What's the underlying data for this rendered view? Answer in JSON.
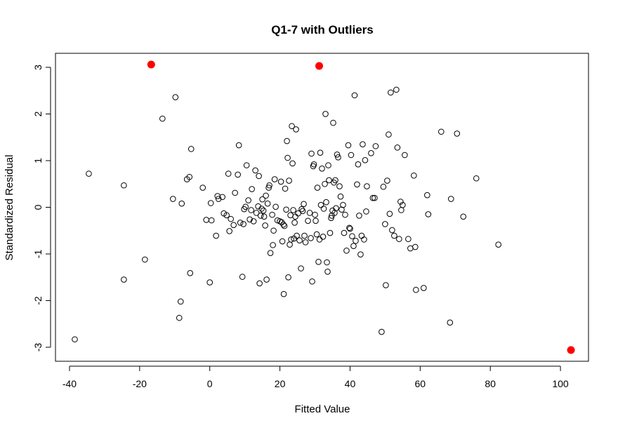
{
  "chart_data": {
    "type": "scatter",
    "title": "Q1-7 with Outliers",
    "xlabel": "Fitted Value",
    "ylabel": "Standardized Residual",
    "xlim": [
      -44,
      108
    ],
    "ylim": [
      -3.3,
      3.3
    ],
    "xticks": [
      -40,
      -20,
      0,
      20,
      40,
      60,
      80,
      100
    ],
    "yticks": [
      -3,
      -2,
      -1,
      0,
      1,
      2,
      3
    ],
    "grid": false,
    "colors": {
      "points": "#000000",
      "outliers": "#ff0000"
    },
    "points": [
      [
        -38.5,
        -2.83
      ],
      [
        -34.5,
        0.72
      ],
      [
        -24.5,
        0.47
      ],
      [
        -24.5,
        -1.55
      ],
      [
        -18.5,
        -1.12
      ],
      [
        -13.5,
        1.9
      ],
      [
        -10.5,
        0.18
      ],
      [
        -9.8,
        2.36
      ],
      [
        -8.7,
        -2.37
      ],
      [
        -8.3,
        -2.02
      ],
      [
        -8,
        0.08
      ],
      [
        -6.5,
        0.6
      ],
      [
        -5.8,
        0.65
      ],
      [
        -5.6,
        -1.41
      ],
      [
        -5.3,
        1.25
      ],
      [
        -2,
        0.42
      ],
      [
        -1,
        -0.27
      ],
      [
        0,
        -1.61
      ],
      [
        0.3,
        0.09
      ],
      [
        0.5,
        -0.28
      ],
      [
        1.8,
        -0.61
      ],
      [
        2.2,
        0.24
      ],
      [
        2.5,
        0.18
      ],
      [
        3.6,
        0.22
      ],
      [
        4,
        -0.13
      ],
      [
        4.8,
        -0.17
      ],
      [
        5.3,
        0.72
      ],
      [
        5.6,
        -0.51
      ],
      [
        6,
        -0.25
      ],
      [
        6.8,
        -0.38
      ],
      [
        7.2,
        0.31
      ],
      [
        8,
        0.7
      ],
      [
        8.3,
        1.33
      ],
      [
        8.7,
        -0.33
      ],
      [
        9.3,
        -1.49
      ],
      [
        9.6,
        -0.36
      ],
      [
        9.8,
        -0.04
      ],
      [
        10.2,
        0.01
      ],
      [
        10.5,
        0.9
      ],
      [
        11,
        0.15
      ],
      [
        11.4,
        -0.26
      ],
      [
        11.8,
        -0.06
      ],
      [
        12,
        0.39
      ],
      [
        12.5,
        -0.3
      ],
      [
        13,
        0.79
      ],
      [
        13.3,
        -0.12
      ],
      [
        13.8,
        0.02
      ],
      [
        14,
        0.67
      ],
      [
        14.2,
        -1.63
      ],
      [
        14.5,
        -0.18
      ],
      [
        14.8,
        -0.03
      ],
      [
        15,
        0.17
      ],
      [
        15.3,
        -0.07
      ],
      [
        15.5,
        -0.2
      ],
      [
        15.8,
        -0.39
      ],
      [
        16,
        0.25
      ],
      [
        16.2,
        -1.55
      ],
      [
        16.5,
        0.08
      ],
      [
        16.8,
        0.42
      ],
      [
        17,
        0.47
      ],
      [
        17.3,
        -0.98
      ],
      [
        17.8,
        -0.16
      ],
      [
        18,
        -0.81
      ],
      [
        18.2,
        -0.5
      ],
      [
        18.5,
        0.6
      ],
      [
        18.8,
        0.01
      ],
      [
        19.3,
        -0.28
      ],
      [
        20,
        -0.3
      ],
      [
        20.3,
        0.55
      ],
      [
        20.5,
        -0.32
      ],
      [
        20.7,
        -0.73
      ],
      [
        21,
        -0.37
      ],
      [
        21.1,
        -1.86
      ],
      [
        21.3,
        -0.4
      ],
      [
        21.5,
        0.4
      ],
      [
        21.8,
        -0.05
      ],
      [
        22,
        1.42
      ],
      [
        22.2,
        1.06
      ],
      [
        22.4,
        -1.5
      ],
      [
        22.6,
        0.57
      ],
      [
        22.8,
        -0.8
      ],
      [
        23,
        -0.17
      ],
      [
        23.2,
        -0.69
      ],
      [
        23.4,
        1.74
      ],
      [
        23.6,
        0.94
      ],
      [
        23.8,
        -0.06
      ],
      [
        24,
        -0.67
      ],
      [
        24.2,
        -0.33
      ],
      [
        24.4,
        -0.2
      ],
      [
        24.6,
        1.67
      ],
      [
        24.8,
        -0.61
      ],
      [
        25.2,
        -0.13
      ],
      [
        25.6,
        -0.71
      ],
      [
        26,
        -1.31
      ],
      [
        26.2,
        -0.04
      ],
      [
        26.5,
        -0.08
      ],
      [
        26.8,
        0.07
      ],
      [
        27,
        -0.61
      ],
      [
        27.3,
        -0.75
      ],
      [
        28,
        -0.29
      ],
      [
        28.5,
        -0.12
      ],
      [
        28.8,
        -0.66
      ],
      [
        29,
        1.15
      ],
      [
        29.2,
        -1.59
      ],
      [
        29.5,
        0.88
      ],
      [
        29.7,
        0.92
      ],
      [
        30,
        -0.16
      ],
      [
        30.2,
        -0.29
      ],
      [
        30.5,
        -0.58
      ],
      [
        30.7,
        0.42
      ],
      [
        31,
        -1.17
      ],
      [
        31.3,
        -0.69
      ],
      [
        31.5,
        1.17
      ],
      [
        31.7,
        0.05
      ],
      [
        32,
        0.83
      ],
      [
        32.3,
        -0.63
      ],
      [
        32.5,
        -0.03
      ],
      [
        32.8,
        0.5
      ],
      [
        33,
        2.0
      ],
      [
        33.2,
        0.11
      ],
      [
        33.4,
        -1.18
      ],
      [
        33.6,
        -1.38
      ],
      [
        33.8,
        0.9
      ],
      [
        34,
        0.58
      ],
      [
        34.3,
        -0.55
      ],
      [
        34.6,
        -0.23
      ],
      [
        34.8,
        -0.18
      ],
      [
        35,
        -0.07
      ],
      [
        35.2,
        1.81
      ],
      [
        35.4,
        0.53
      ],
      [
        35.6,
        -0.12
      ],
      [
        35.8,
        0.58
      ],
      [
        36,
        -0.02
      ],
      [
        36.3,
        1.13
      ],
      [
        36.6,
        1.07
      ],
      [
        37,
        0.45
      ],
      [
        37.3,
        0.23
      ],
      [
        37.6,
        -0.05
      ],
      [
        38,
        0.05
      ],
      [
        38.3,
        -0.55
      ],
      [
        38.6,
        -0.16
      ],
      [
        39,
        -0.93
      ],
      [
        39.5,
        1.33
      ],
      [
        39.8,
        -0.44
      ],
      [
        40,
        -0.46
      ],
      [
        40.3,
        1.12
      ],
      [
        40.6,
        -0.62
      ],
      [
        41,
        -0.83
      ],
      [
        41.3,
        2.4
      ],
      [
        41.6,
        -0.72
      ],
      [
        42,
        0.49
      ],
      [
        42.3,
        0.92
      ],
      [
        42.6,
        -0.18
      ],
      [
        43,
        -1.01
      ],
      [
        43.3,
        -0.61
      ],
      [
        43.6,
        1.35
      ],
      [
        44,
        -0.69
      ],
      [
        44.3,
        1.01
      ],
      [
        44.6,
        -0.09
      ],
      [
        44.8,
        0.45
      ],
      [
        46,
        1.16
      ],
      [
        46.5,
        0.2
      ],
      [
        47,
        0.2
      ],
      [
        47.3,
        1.31
      ],
      [
        49,
        -2.67
      ],
      [
        49.5,
        0.44
      ],
      [
        50,
        -0.36
      ],
      [
        50.2,
        -1.67
      ],
      [
        50.6,
        0.57
      ],
      [
        51,
        1.56
      ],
      [
        51.3,
        -0.14
      ],
      [
        51.6,
        2.46
      ],
      [
        52,
        -0.49
      ],
      [
        52.6,
        -0.61
      ],
      [
        53.2,
        2.52
      ],
      [
        53.5,
        1.28
      ],
      [
        54,
        -0.68
      ],
      [
        54.4,
        0.12
      ],
      [
        54.6,
        -0.06
      ],
      [
        55,
        0.05
      ],
      [
        55.6,
        1.12
      ],
      [
        56.6,
        -0.68
      ],
      [
        57.2,
        -0.88
      ],
      [
        58.2,
        0.68
      ],
      [
        58.6,
        -0.85
      ],
      [
        58.8,
        -1.77
      ],
      [
        61,
        -1.73
      ],
      [
        62,
        0.26
      ],
      [
        62.3,
        -0.15
      ],
      [
        66,
        1.62
      ],
      [
        68.5,
        -2.47
      ],
      [
        68.8,
        0.18
      ],
      [
        70.5,
        1.58
      ],
      [
        72.3,
        -0.2
      ],
      [
        76,
        0.62
      ],
      [
        82.3,
        -0.8
      ]
    ],
    "outliers": [
      [
        -16.7,
        3.06
      ],
      [
        31.2,
        3.03
      ],
      [
        103,
        -3.06
      ]
    ]
  }
}
